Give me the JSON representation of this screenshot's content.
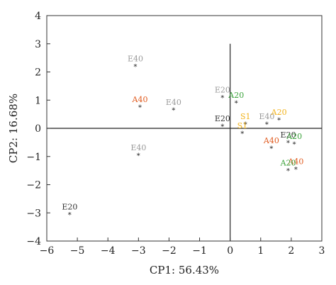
{
  "chart_data": {
    "type": "scatter",
    "xlabel": "CP1: 56.43%",
    "ylabel": "CP2: 16.68%",
    "xlim": [
      -6,
      3
    ],
    "ylim": [
      -4,
      4
    ],
    "xticks": [
      "−6",
      "−5",
      "−4",
      "−3",
      "−2",
      "−1",
      "0",
      "1",
      "2",
      "3"
    ],
    "yticks": [
      "−4",
      "−3",
      "−2",
      "−1",
      "0",
      "1",
      "2",
      "3",
      "4"
    ],
    "crosshair": {
      "x": 0,
      "y": 0,
      "vertical_range": [
        -4,
        3
      ]
    },
    "colors": {
      "E": "#9a9a9a",
      "A40": "#e05a1e",
      "A20": "#3aa23a",
      "S1": "#f2b21a",
      "E20": "#333333"
    },
    "points": [
      {
        "label": "E40",
        "x": -3.1,
        "y": 2.25,
        "color": "#9a9a9a"
      },
      {
        "label": "A40",
        "x": -2.95,
        "y": 0.8,
        "color": "#e05a1e"
      },
      {
        "label": "E40",
        "x": -1.85,
        "y": 0.7,
        "color": "#9a9a9a"
      },
      {
        "label": "E40",
        "x": -3.0,
        "y": -0.9,
        "color": "#9a9a9a"
      },
      {
        "label": "E20",
        "x": -5.25,
        "y": -3.0,
        "color": "#333333"
      },
      {
        "label": "E20",
        "x": -0.25,
        "y": 1.15,
        "color": "#9a9a9a"
      },
      {
        "label": "A20",
        "x": 0.2,
        "y": 0.95,
        "color": "#3aa23a"
      },
      {
        "label": "E20",
        "x": -0.25,
        "y": 0.12,
        "color": "#333333"
      },
      {
        "label": "S1",
        "x": 0.5,
        "y": 0.2,
        "color": "#f2b21a"
      },
      {
        "label": "S1",
        "x": 0.4,
        "y": -0.12,
        "color": "#f2b21a"
      },
      {
        "label": "E40",
        "x": 1.2,
        "y": 0.2,
        "color": "#9a9a9a"
      },
      {
        "label": "A20",
        "x": 1.6,
        "y": 0.35,
        "color": "#f2b21a"
      },
      {
        "label": "E20",
        "x": 1.9,
        "y": -0.45,
        "color": "#333333"
      },
      {
        "label": "A20",
        "x": 2.1,
        "y": -0.5,
        "color": "#3aa23a"
      },
      {
        "label": "A40",
        "x": 1.35,
        "y": -0.65,
        "color": "#e05a1e"
      },
      {
        "label": "A40",
        "x": 2.15,
        "y": -1.4,
        "color": "#e05a1e"
      },
      {
        "label": "A20",
        "x": 1.9,
        "y": -1.45,
        "color": "#3aa23a"
      }
    ]
  }
}
